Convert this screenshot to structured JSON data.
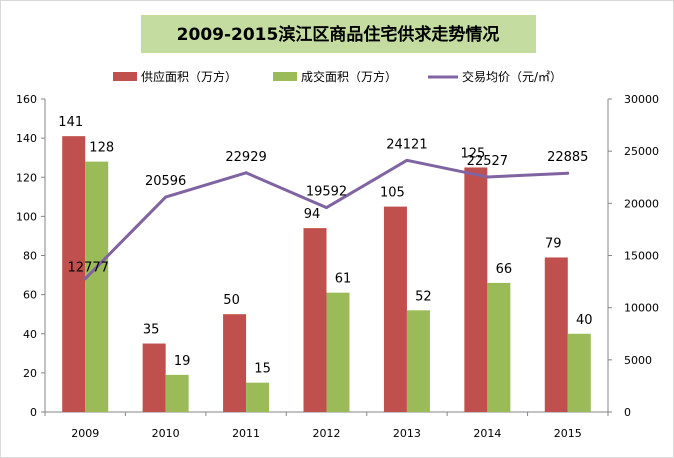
{
  "chart_data": {
    "type": "bar",
    "title": "2009-2015滨江区商品住宅供求走势情况",
    "categories": [
      "2009",
      "2010",
      "2011",
      "2012",
      "2013",
      "2014",
      "2015"
    ],
    "series": [
      {
        "name": "供应面积（万方）",
        "type": "bar",
        "axis": "left",
        "color": "#c0504d",
        "values": [
          141,
          35,
          50,
          94,
          105,
          125,
          79
        ]
      },
      {
        "name": "成交面积（万方）",
        "type": "bar",
        "axis": "left",
        "color": "#9bbb59",
        "values": [
          128,
          19,
          15,
          61,
          52,
          66,
          40
        ]
      },
      {
        "name": "交易均价（元/㎡）",
        "type": "line",
        "axis": "right",
        "color": "#8064a2",
        "values": [
          12777,
          20596,
          22929,
          19592,
          24121,
          22527,
          22885
        ]
      }
    ],
    "y_left": {
      "min": 0,
      "max": 160,
      "step": 20,
      "ticks": [
        "0",
        "20",
        "40",
        "60",
        "80",
        "100",
        "120",
        "140",
        "160"
      ]
    },
    "y_right": {
      "min": 0,
      "max": 30000,
      "step": 5000,
      "ticks": [
        "0",
        "5000",
        "10000",
        "15000",
        "20000",
        "25000",
        "30000"
      ]
    },
    "grid": false,
    "legend_position": "top"
  },
  "colors": {
    "title_bg": "#c4dca0",
    "supply": "#c0504d",
    "deal": "#9bbb59",
    "price": "#8064a2",
    "axis": "#868686"
  }
}
